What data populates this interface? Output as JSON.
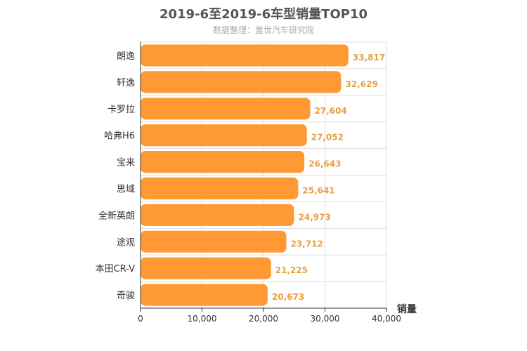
{
  "chart_data": {
    "type": "bar",
    "orientation": "horizontal",
    "title": "2019-6至2019-6车型销量TOP10",
    "subtitle": "数据整理：盖世汽车研究院",
    "categories": [
      "朗逸",
      "轩逸",
      "卡罗拉",
      "哈弗H6",
      "宝来",
      "思域",
      "全新英朗",
      "途观",
      "本田CR-V",
      "奇骏"
    ],
    "values": [
      33817,
      32629,
      27604,
      27052,
      26643,
      25641,
      24973,
      23712,
      21225,
      20673
    ],
    "value_labels": [
      "33,817",
      "32,629",
      "27,604",
      "27,052",
      "26,643",
      "25,641",
      "24,973",
      "23,712",
      "21,225",
      "20,673"
    ],
    "xlabel": "销量",
    "ylabel": "",
    "xlim": [
      0,
      40000
    ],
    "x_ticks": [
      0,
      10000,
      20000,
      30000,
      40000
    ],
    "x_tick_labels": [
      "0",
      "10,000",
      "20,000",
      "30,000",
      "40,000"
    ],
    "grid": true,
    "colors": {
      "bar": "#ff9933",
      "value_label": "#e8a040",
      "grid": "#dddddd",
      "axis": "#333333",
      "category_label": "#333333",
      "tick_label": "#333333"
    }
  }
}
